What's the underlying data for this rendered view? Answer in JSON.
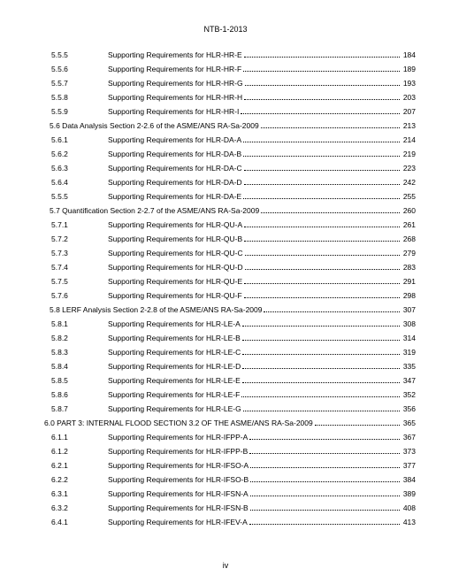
{
  "doc_header": "NTB-1-2013",
  "page_number_label": "iv",
  "entries": [
    {
      "level": "sub",
      "num": "5.5.5",
      "title": "Supporting Requirements for HLR-HR-E",
      "page": "184"
    },
    {
      "level": "sub",
      "num": "5.5.6",
      "title": "Supporting Requirements for HLR-HR-F",
      "page": "189"
    },
    {
      "level": "sub",
      "num": "5.5.7",
      "title": "Supporting Requirements for HLR-HR-G",
      "page": "193"
    },
    {
      "level": "sub",
      "num": "5.5.8",
      "title": "Supporting Requirements for HLR-HR-H",
      "page": "203"
    },
    {
      "level": "sub",
      "num": "5.5.9",
      "title": "Supporting Requirements for HLR-HR-I",
      "page": "207"
    },
    {
      "level": "sec",
      "num": "",
      "title": "5.6 Data Analysis Section 2-2.6 of the ASME/ANS RA-Sa-2009",
      "page": "213"
    },
    {
      "level": "sub",
      "num": "5.6.1",
      "title": "Supporting Requirements for HLR-DA-A",
      "page": "214"
    },
    {
      "level": "sub",
      "num": "5.6.2",
      "title": "Supporting Requirements for HLR-DA-B",
      "page": "219"
    },
    {
      "level": "sub",
      "num": "5.6.3",
      "title": "Supporting Requirements for HLR-DA-C",
      "page": "223"
    },
    {
      "level": "sub",
      "num": "5.6.4",
      "title": "Supporting Requirements for HLR-DA-D",
      "page": "242"
    },
    {
      "level": "sub",
      "num": "5.5.5",
      "title": "Supporting Requirements for HLR-DA-E",
      "page": "255"
    },
    {
      "level": "sec",
      "num": "",
      "title": "5.7 Quantification Section 2-2.7 of the ASME/ANS RA-Sa-2009",
      "page": "260"
    },
    {
      "level": "sub",
      "num": "5.7.1",
      "title": "Supporting Requirements for HLR-QU-A",
      "page": "261"
    },
    {
      "level": "sub",
      "num": "5.7.2",
      "title": "Supporting Requirements for HLR-QU-B",
      "page": "268"
    },
    {
      "level": "sub",
      "num": "5.7.3",
      "title": "Supporting Requirements for HLR-QU-C",
      "page": "279"
    },
    {
      "level": "sub",
      "num": "5.7.4",
      "title": "Supporting Requirements for HLR-QU-D",
      "page": "283"
    },
    {
      "level": "sub",
      "num": "5.7.5",
      "title": "Supporting Requirements for HLR-QU-E",
      "page": "291"
    },
    {
      "level": "sub",
      "num": "5.7.6",
      "title": "Supporting Requirements for HLR-QU-F",
      "page": "298"
    },
    {
      "level": "sec",
      "num": "",
      "title": "5.8 LERF Analysis Section 2-2.8 of the ASME/ANS RA-Sa-2009",
      "page": "307"
    },
    {
      "level": "sub",
      "num": "5.8.1",
      "title": "Supporting Requirements for HLR-LE-A",
      "page": "308"
    },
    {
      "level": "sub",
      "num": "5.8.2",
      "title": "Supporting Requirements for HLR-LE-B",
      "page": "314"
    },
    {
      "level": "sub",
      "num": "5.8.3",
      "title": "Supporting Requirements for HLR-LE-C",
      "page": "319"
    },
    {
      "level": "sub",
      "num": "5.8.4",
      "title": "Supporting Requirements for HLR-LE-D",
      "page": "335"
    },
    {
      "level": "sub",
      "num": "5.8.5",
      "title": "Supporting Requirements for HLR-LE-E",
      "page": "347"
    },
    {
      "level": "sub",
      "num": "5.8.6",
      "title": "Supporting Requirements for HLR-LE-F",
      "page": "352"
    },
    {
      "level": "sub",
      "num": "5.8.7",
      "title": "Supporting Requirements for HLR-LE-G",
      "page": "356"
    },
    {
      "level": "part",
      "num": "",
      "title": "6.0 PART 3: INTERNAL FLOOD SECTION 3.2 OF THE ASME/ANS RA-Sa-2009",
      "page": "365"
    },
    {
      "level": "sub",
      "num": "6.1.1",
      "title": "Supporting Requirements for HLR-IFPP-A",
      "page": "367"
    },
    {
      "level": "sub",
      "num": "6.1.2",
      "title": "Supporting Requirements for HLR-IFPP-B",
      "page": "373"
    },
    {
      "level": "sub",
      "num": "6.2.1",
      "title": "Supporting Requirements for HLR-IFSO-A",
      "page": "377"
    },
    {
      "level": "sub",
      "num": "6.2.2",
      "title": "Supporting Requirements for HLR-IFSO-B",
      "page": "384"
    },
    {
      "level": "sub",
      "num": "6.3.1",
      "title": "Supporting Requirements for HLR-IFSN-A",
      "page": "389"
    },
    {
      "level": "sub",
      "num": "6.3.2",
      "title": "Supporting Requirements for HLR-IFSN-B",
      "page": "408"
    },
    {
      "level": "sub",
      "num": "6.4.1",
      "title": "Supporting Requirements for HLR-IFEV-A",
      "page": "413"
    }
  ]
}
